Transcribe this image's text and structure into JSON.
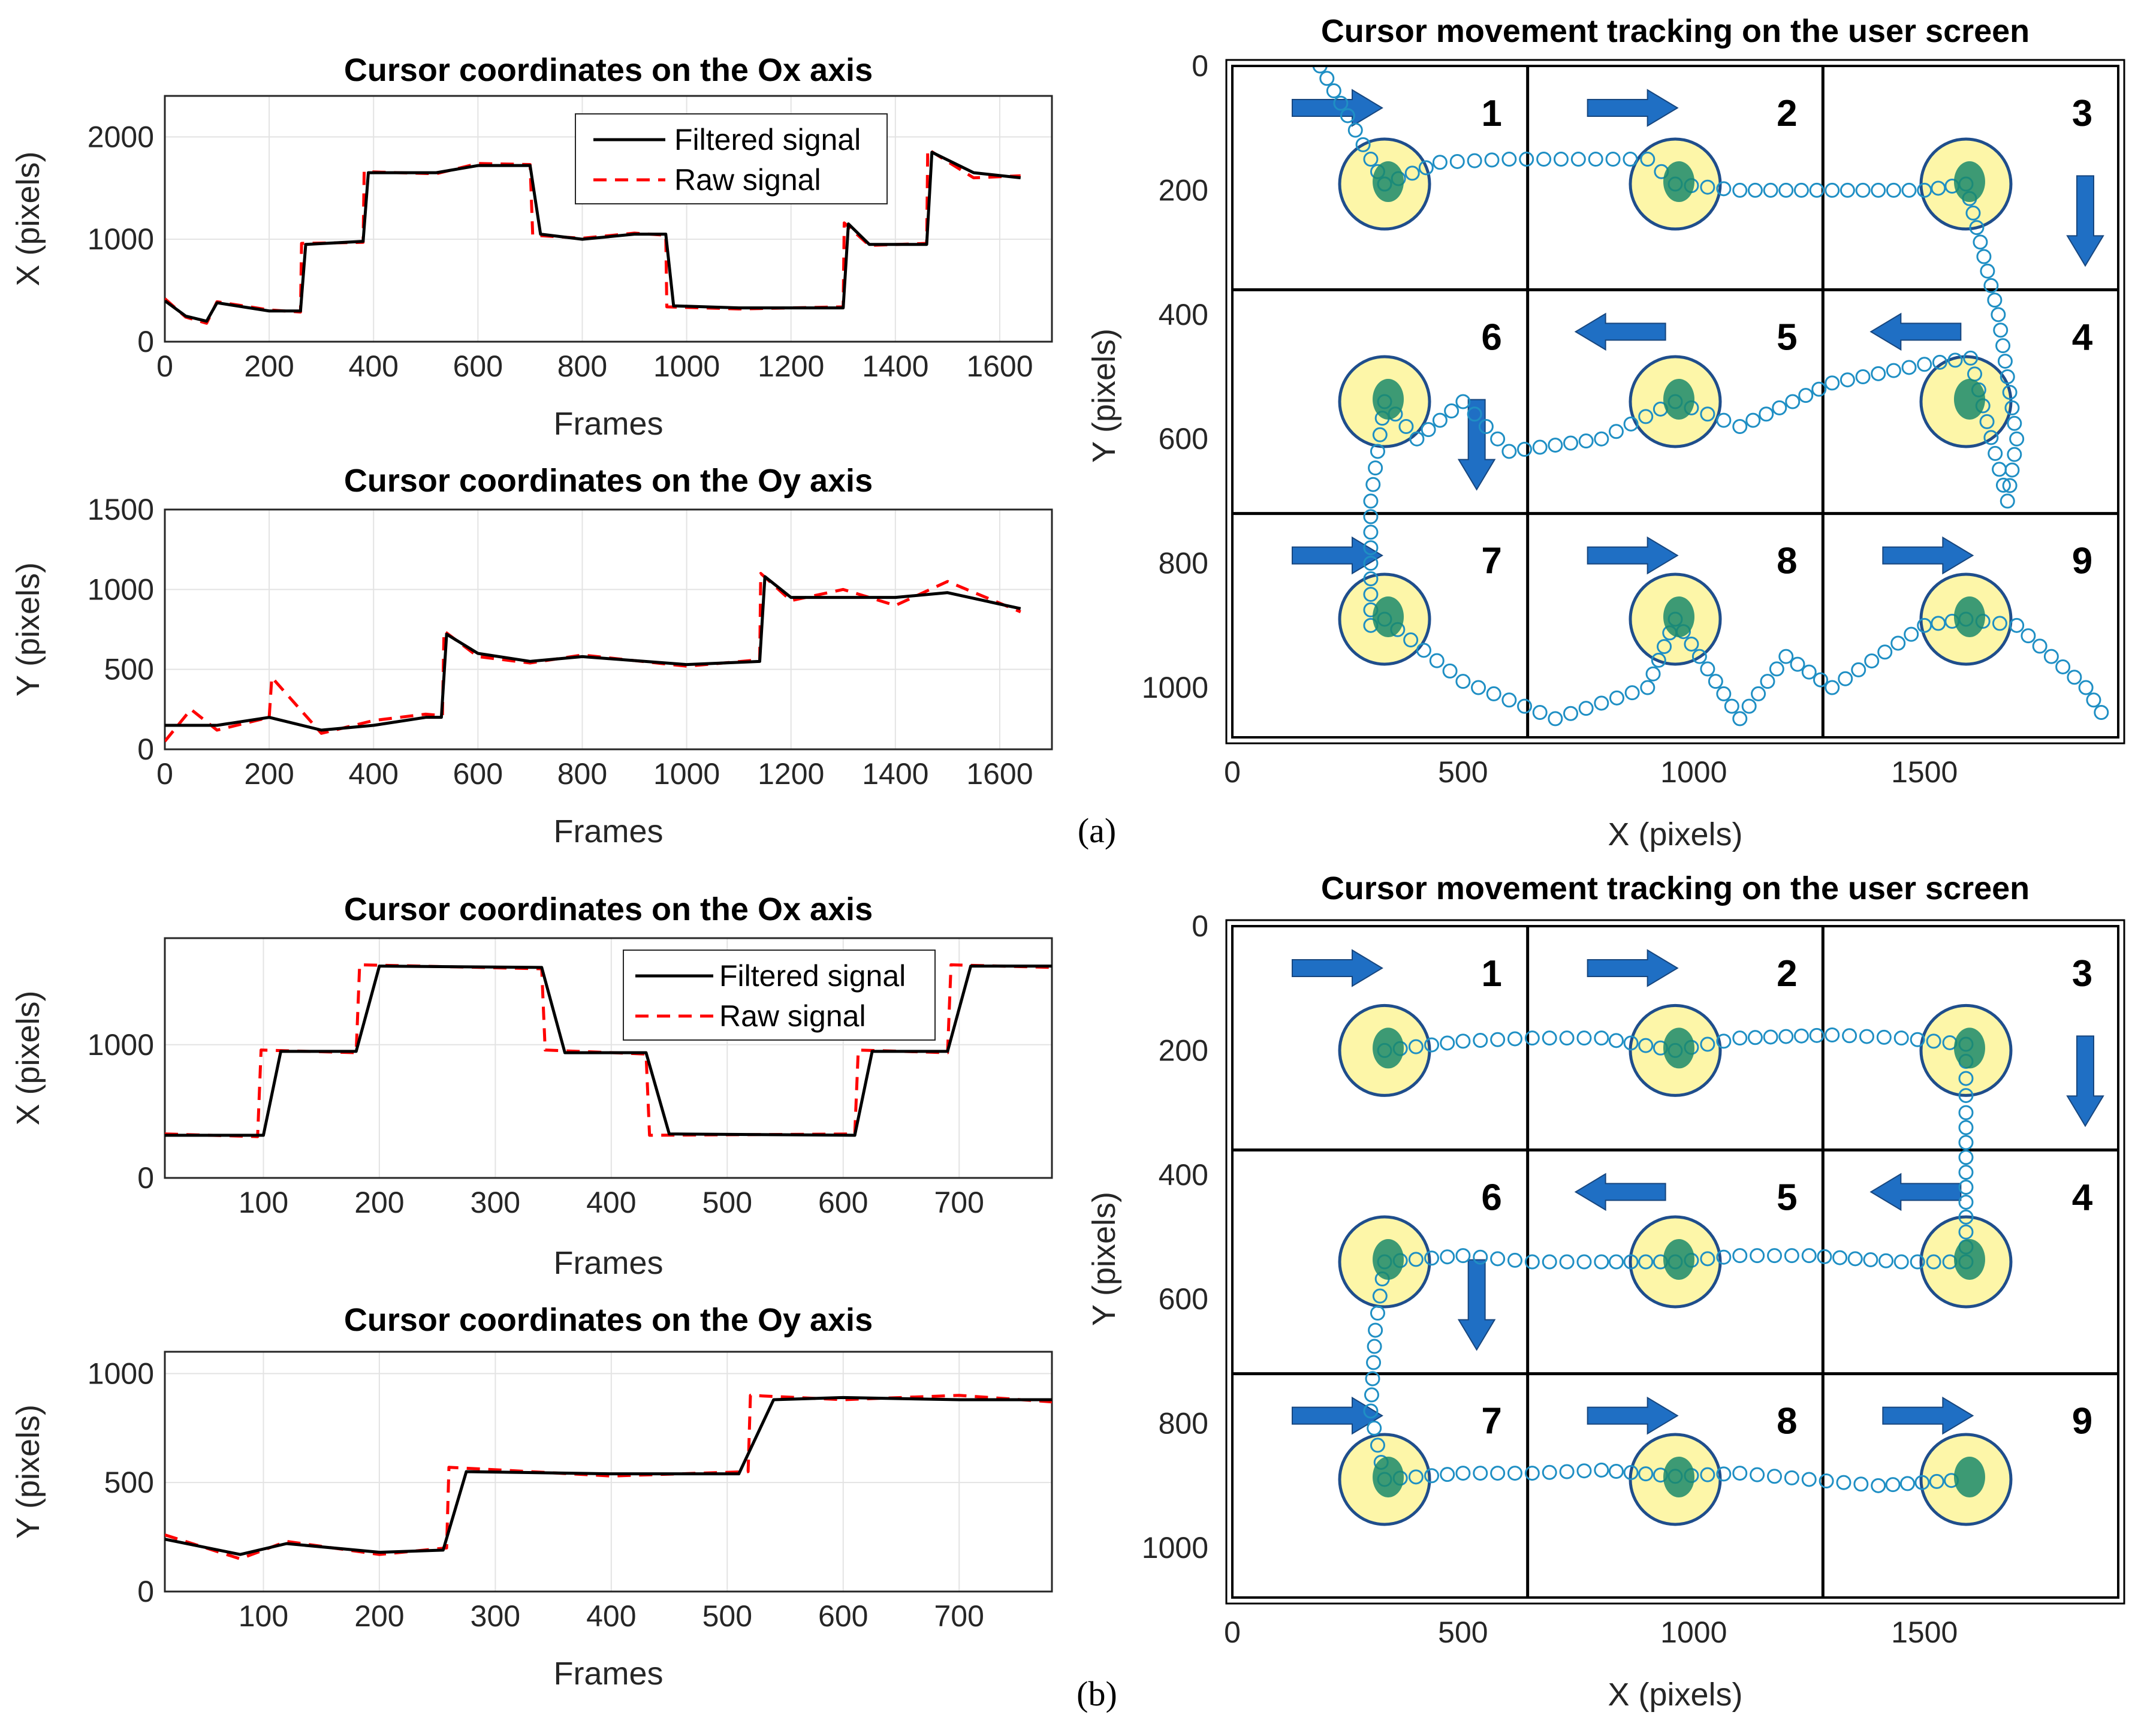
{
  "colors": {
    "filtered": "#000000",
    "raw": "#ff0000",
    "tracking": "#1f8fc4",
    "target_fill": "#fdf6a8",
    "target_edge": "#1f4e8c",
    "arrow": "#1f6fc4",
    "gaze_cluster": "#1b8a6b"
  },
  "panels": [
    {
      "panel_label": "(a)",
      "chart_data": [
        {
          "type": "line",
          "title": "Cursor coordinates on the Ox axis",
          "xlabel": "Frames",
          "ylabel": "X (pixels)",
          "xlim": [
            0,
            1700
          ],
          "ylim": [
            0,
            2400
          ],
          "xticks": [
            0,
            200,
            400,
            600,
            800,
            1000,
            1200,
            1400,
            1600
          ],
          "yticks": [
            0,
            1000,
            2000
          ],
          "grid": true,
          "legend": "top-center",
          "series": [
            {
              "name": "Filtered signal",
              "style": "solid",
              "x": [
                0,
                40,
                80,
                100,
                200,
                260,
                270,
                380,
                390,
                520,
                600,
                700,
                720,
                800,
                900,
                960,
                975,
                1100,
                1300,
                1310,
                1350,
                1460,
                1470,
                1550,
                1640
              ],
              "y": [
                400,
                250,
                200,
                380,
                300,
                300,
                950,
                980,
                1650,
                1650,
                1720,
                1720,
                1050,
                1000,
                1050,
                1050,
                350,
                330,
                330,
                1150,
                950,
                950,
                1850,
                1650,
                1600
              ]
            },
            {
              "name": "Raw signal",
              "style": "dashed",
              "x": [
                0,
                40,
                80,
                100,
                200,
                260,
                262,
                380,
                382,
                520,
                600,
                700,
                705,
                800,
                900,
                960,
                962,
                1100,
                1300,
                1302,
                1350,
                1460,
                1462,
                1550,
                1640
              ],
              "y": [
                420,
                240,
                180,
                390,
                310,
                290,
                960,
                970,
                1660,
                1640,
                1740,
                1730,
                1040,
                1010,
                1060,
                1040,
                340,
                320,
                340,
                1160,
                940,
                960,
                1880,
                1600,
                1620
              ]
            }
          ]
        },
        {
          "type": "line",
          "title": "Cursor coordinates on the Oy axis",
          "xlabel": "Frames",
          "ylabel": "Y (pixels)",
          "xlim": [
            0,
            1700
          ],
          "ylim": [
            0,
            1500
          ],
          "xticks": [
            0,
            200,
            400,
            600,
            800,
            1000,
            1200,
            1400,
            1600
          ],
          "yticks": [
            0,
            500,
            1000,
            1500
          ],
          "grid": true,
          "series": [
            {
              "name": "Filtered signal",
              "style": "solid",
              "x": [
                0,
                100,
                200,
                300,
                400,
                500,
                530,
                540,
                600,
                700,
                800,
                1000,
                1140,
                1150,
                1200,
                1300,
                1400,
                1500,
                1640
              ],
              "y": [
                150,
                150,
                200,
                120,
                150,
                200,
                200,
                720,
                600,
                550,
                580,
                530,
                550,
                1080,
                950,
                950,
                950,
                980,
                880
              ]
            },
            {
              "name": "Raw signal",
              "style": "dashed",
              "x": [
                0,
                50,
                100,
                200,
                205,
                300,
                400,
                500,
                532,
                535,
                600,
                700,
                800,
                1000,
                1140,
                1142,
                1200,
                1300,
                1400,
                1500,
                1640
              ],
              "y": [
                50,
                250,
                120,
                200,
                450,
                100,
                180,
                220,
                210,
                740,
                580,
                540,
                590,
                520,
                560,
                1100,
                930,
                1000,
                900,
                1050,
                860
              ]
            }
          ]
        },
        {
          "type": "scatter",
          "title": "Cursor movement tracking on the user screen",
          "xlabel": "X (pixels)",
          "ylabel": "Y (pixels)",
          "xlim": [
            0,
            1920
          ],
          "ylim": [
            1080,
            0
          ],
          "xticks": [
            0,
            500,
            1000,
            1500
          ],
          "yticks": [
            0,
            200,
            400,
            600,
            800,
            1000
          ],
          "grid_cells": [
            "1",
            "2",
            "3",
            "6",
            "5",
            "4",
            "7",
            "8",
            "9"
          ],
          "targets": [
            {
              "label": "1",
              "x": 330,
              "y": 190
            },
            {
              "label": "2",
              "x": 960,
              "y": 190
            },
            {
              "label": "3",
              "x": 1590,
              "y": 190
            },
            {
              "label": "4",
              "x": 1590,
              "y": 540
            },
            {
              "label": "5",
              "x": 960,
              "y": 540
            },
            {
              "label": "6",
              "x": 330,
              "y": 540
            },
            {
              "label": "7",
              "x": 330,
              "y": 890
            },
            {
              "label": "8",
              "x": 960,
              "y": 890
            },
            {
              "label": "9",
              "x": 1590,
              "y": 890
            }
          ],
          "path": {
            "x": [
              190,
              250,
              300,
              330,
              330,
              450,
              600,
              750,
              900,
              960,
              1100,
              1300,
              1500,
              1590,
              1660,
              1700,
              1680,
              1600,
              1500,
              1300,
              1100,
              960,
              800,
              600,
              500,
              400,
              330,
              300,
              300,
              330,
              500,
              700,
              900,
              960,
              1100,
              1200,
              1300,
              1500,
              1590,
              1700,
              1850,
              1900
            ],
            "y": [
              0,
              80,
              150,
              190,
              190,
              155,
              150,
              150,
              150,
              190,
              200,
              200,
              200,
              190,
              400,
              600,
              700,
              470,
              480,
              510,
              580,
              540,
              600,
              620,
              540,
              600,
              540,
              700,
              900,
              890,
              990,
              1050,
              1000,
              890,
              1050,
              950,
              1000,
              900,
              890,
              900,
              1000,
              1060
            ]
          }
        }
      ]
    },
    {
      "panel_label": "(b)",
      "chart_data": [
        {
          "type": "line",
          "title": "Cursor coordinates on the Ox axis",
          "xlabel": "Frames",
          "ylabel": "X (pixels)",
          "xlim": [
            15,
            780
          ],
          "ylim": [
            0,
            1800
          ],
          "xticks": [
            100,
            200,
            300,
            400,
            500,
            600,
            700
          ],
          "yticks": [
            0,
            1000
          ],
          "grid": true,
          "legend": "top-right",
          "series": [
            {
              "name": "Filtered signal",
              "style": "solid",
              "x": [
                15,
                100,
                115,
                180,
                200,
                340,
                360,
                430,
                450,
                610,
                625,
                690,
                710,
                780
              ],
              "y": [
                320,
                320,
                950,
                950,
                1590,
                1580,
                940,
                940,
                330,
                320,
                950,
                950,
                1590,
                1590
              ]
            },
            {
              "name": "Raw signal",
              "style": "dashed",
              "x": [
                15,
                95,
                98,
                180,
                183,
                340,
                343,
                430,
                433,
                610,
                613,
                690,
                693,
                780
              ],
              "y": [
                330,
                310,
                960,
                940,
                1600,
                1570,
                960,
                930,
                320,
                330,
                960,
                940,
                1600,
                1580
              ]
            }
          ]
        },
        {
          "type": "line",
          "title": "Cursor coordinates on the Oy axis",
          "xlabel": "Frames",
          "ylabel": "Y (pixels)",
          "xlim": [
            15,
            780
          ],
          "ylim": [
            0,
            1100
          ],
          "xticks": [
            100,
            200,
            300,
            400,
            500,
            600,
            700
          ],
          "yticks": [
            0,
            500,
            1000
          ],
          "grid": true,
          "series": [
            {
              "name": "Filtered signal",
              "style": "solid",
              "x": [
                15,
                80,
                120,
                200,
                255,
                275,
                400,
                510,
                540,
                600,
                700,
                780
              ],
              "y": [
                240,
                170,
                220,
                180,
                190,
                550,
                540,
                540,
                880,
                890,
                880,
                880
              ]
            },
            {
              "name": "Raw signal",
              "style": "dashed",
              "x": [
                15,
                80,
                120,
                200,
                258,
                260,
                400,
                518,
                520,
                600,
                700,
                780
              ],
              "y": [
                260,
                150,
                230,
                170,
                200,
                570,
                530,
                550,
                900,
                880,
                900,
                870
              ]
            }
          ]
        },
        {
          "type": "scatter",
          "title": "Cursor movement tracking on the user screen",
          "xlabel": "X (pixels)",
          "ylabel": "Y (pixels)",
          "xlim": [
            0,
            1920
          ],
          "ylim": [
            1080,
            0
          ],
          "xticks": [
            0,
            500,
            1000,
            1500
          ],
          "yticks": [
            0,
            200,
            400,
            600,
            800,
            1000
          ],
          "grid_cells": [
            "1",
            "2",
            "3",
            "6",
            "5",
            "4",
            "7",
            "8",
            "9"
          ],
          "targets": [
            {
              "label": "1",
              "x": 330,
              "y": 200
            },
            {
              "label": "2",
              "x": 960,
              "y": 200
            },
            {
              "label": "3",
              "x": 1590,
              "y": 200
            },
            {
              "label": "4",
              "x": 1590,
              "y": 540
            },
            {
              "label": "5",
              "x": 960,
              "y": 540
            },
            {
              "label": "6",
              "x": 330,
              "y": 540
            },
            {
              "label": "7",
              "x": 330,
              "y": 890
            },
            {
              "label": "8",
              "x": 960,
              "y": 890
            },
            {
              "label": "9",
              "x": 1590,
              "y": 890
            }
          ],
          "path": {
            "x": [
              330,
              500,
              650,
              800,
              960,
              1100,
              1300,
              1450,
              1590,
              1590,
              1590,
              1590,
              1450,
              1250,
              1100,
              960,
              800,
              650,
              500,
              330,
              310,
              300,
              330,
              500,
              650,
              800,
              960,
              1100,
              1250,
              1400,
              1590
            ],
            "y": [
              200,
              185,
              180,
              180,
              200,
              180,
              175,
              180,
              190,
              300,
              420,
              540,
              540,
              530,
              530,
              540,
              540,
              540,
              530,
              540,
              650,
              780,
              890,
              880,
              880,
              875,
              885,
              880,
              890,
              900,
              890
            ]
          }
        }
      ]
    }
  ]
}
